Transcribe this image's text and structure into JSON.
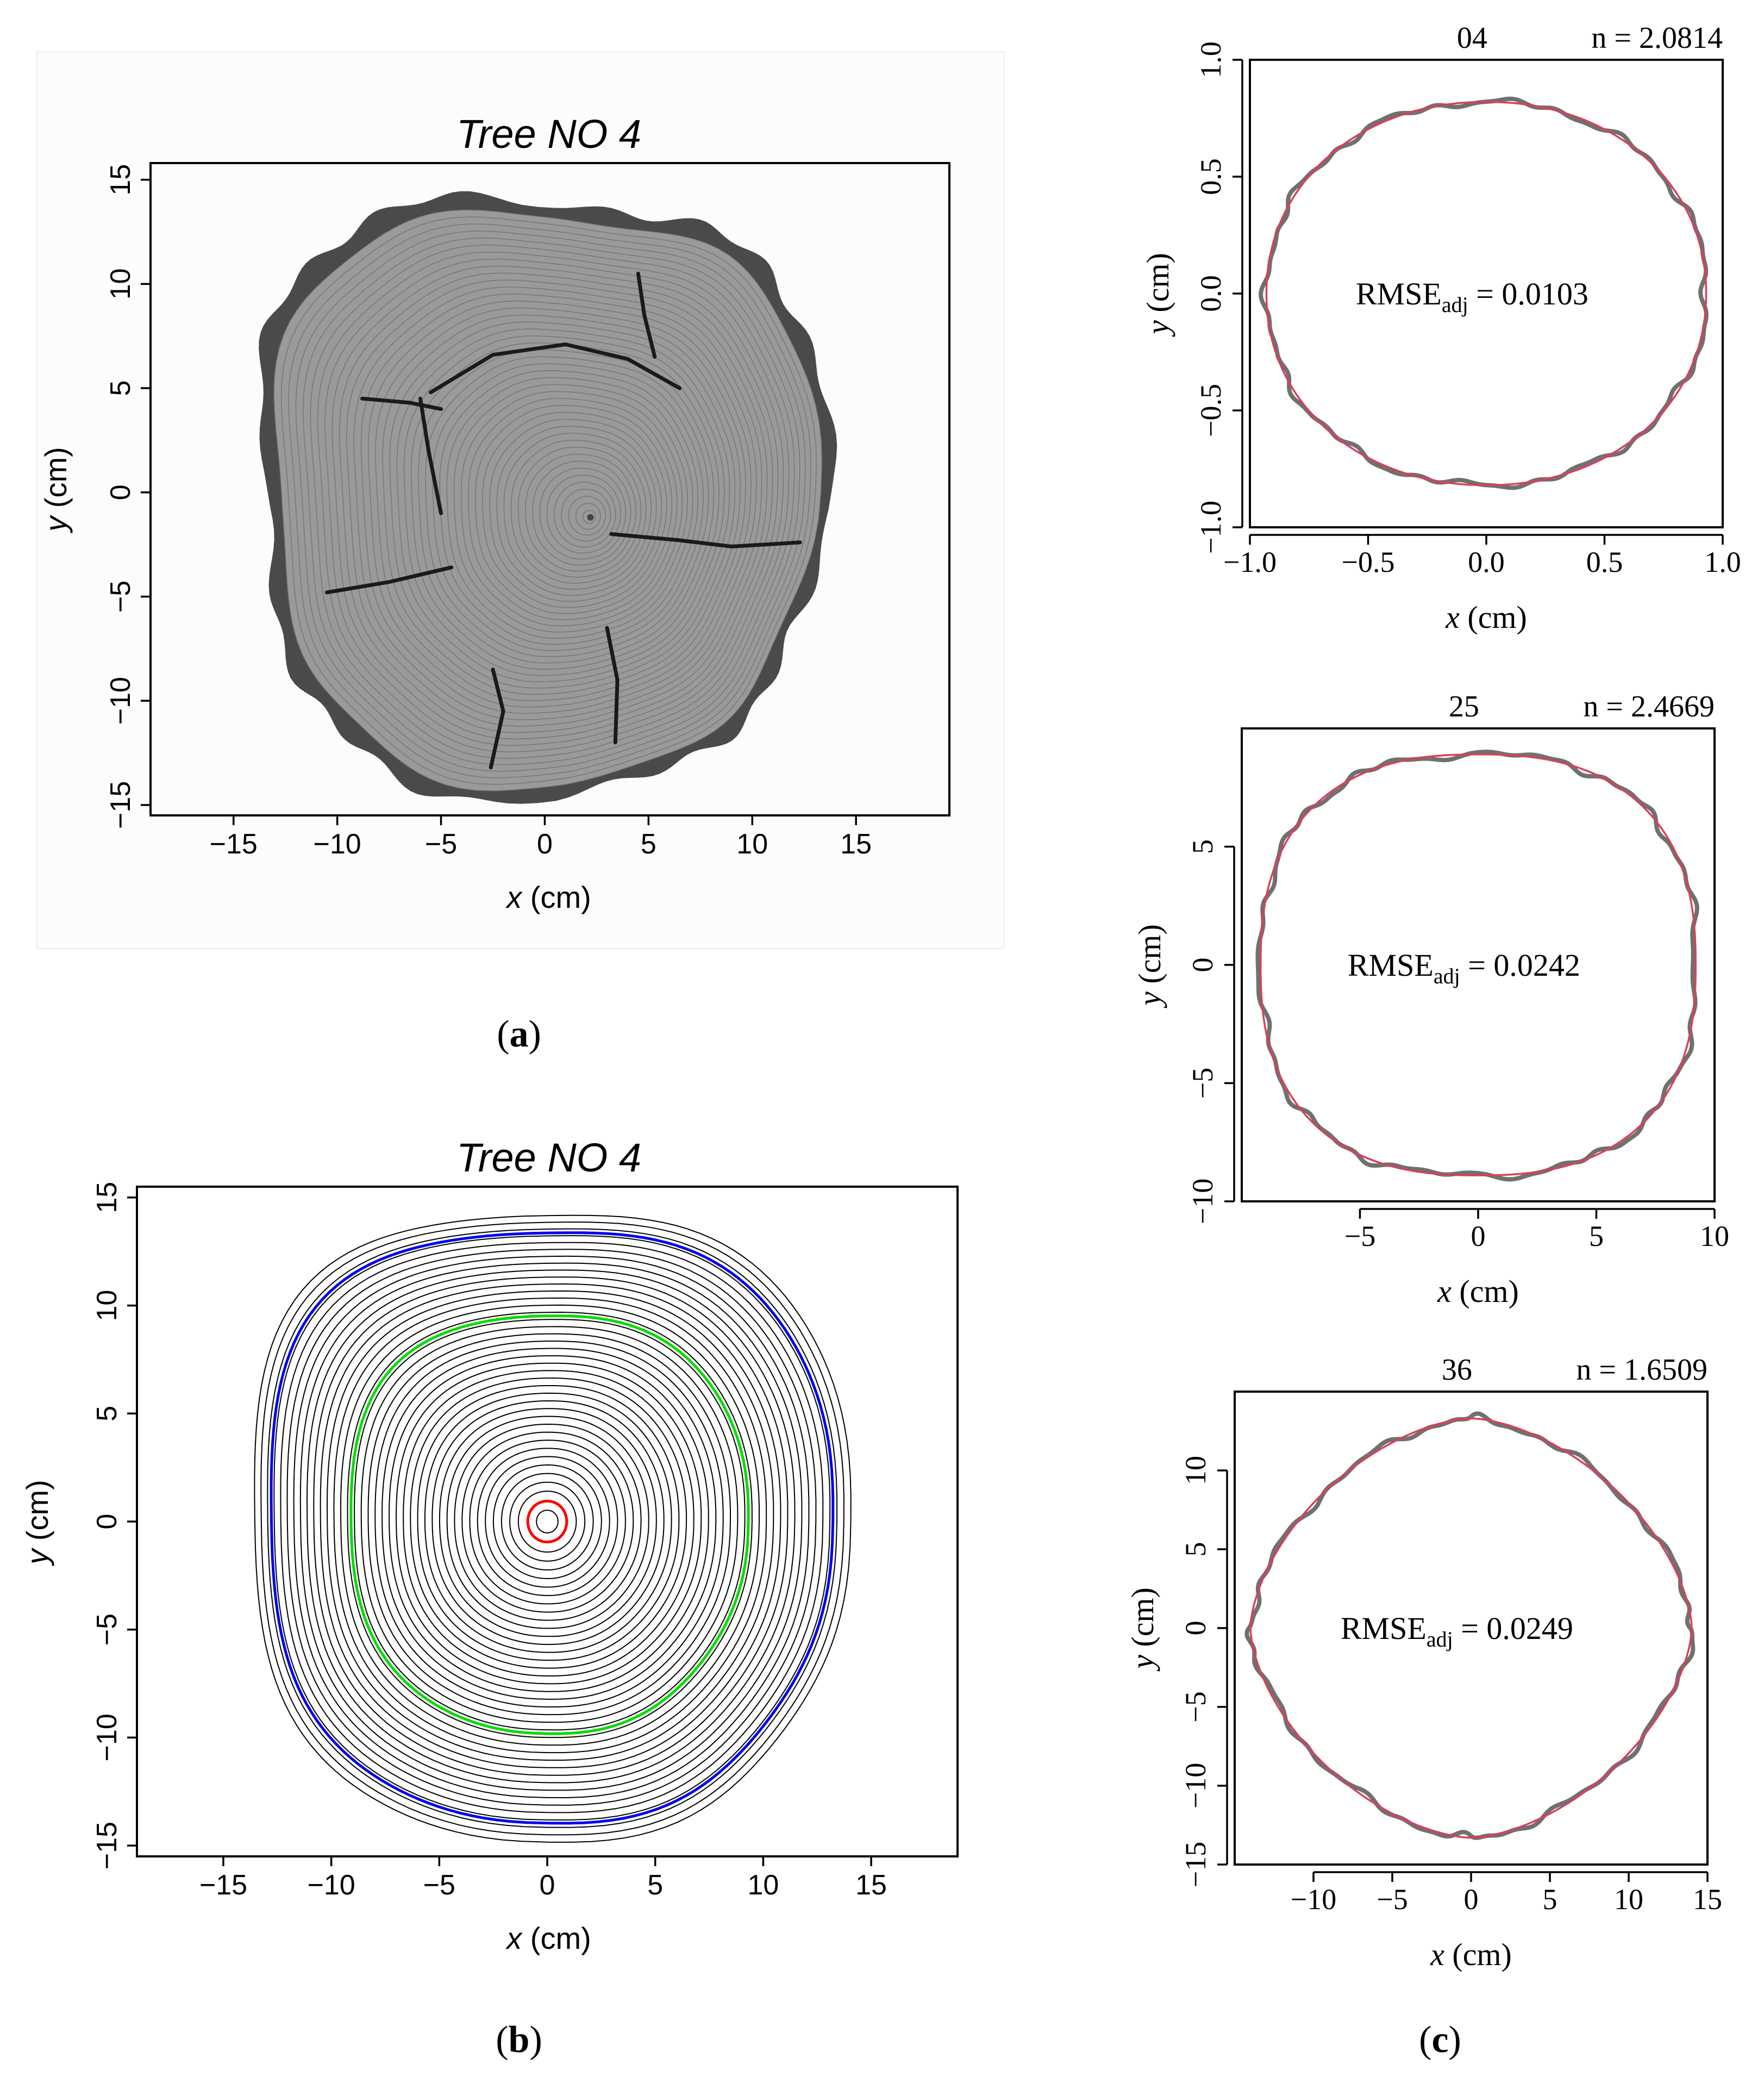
{
  "figure": {
    "panel_labels": {
      "a": "a",
      "b": "b",
      "c": "c"
    },
    "axis_labels": {
      "x_var": "x",
      "y_var": "y",
      "unit": " (cm)"
    },
    "label_parens": {
      "open": "(",
      "close": ")"
    }
  },
  "colors": {
    "ring": "#000000",
    "highlight_red": "#ff0000",
    "highlight_green": "#00dd00",
    "highlight_blue": "#0000ee",
    "observed": "#707070",
    "fit": "#d9405a",
    "wood": "#9a9a9a",
    "bark": "#4a4a4a"
  },
  "chart_data": [
    {
      "id": "a",
      "type": "image",
      "title": "Tree NO 4",
      "xlabel": "x (cm)",
      "ylabel": "y (cm)",
      "xlim": [
        -19,
        19.5
      ],
      "ylim": [
        -15.5,
        15.8
      ],
      "xticks": [
        -15,
        -10,
        -5,
        0,
        5,
        10,
        15
      ],
      "yticks": [
        -15,
        -10,
        -5,
        0,
        5,
        10,
        15
      ],
      "pith": [
        2.2,
        -1.2
      ]
    },
    {
      "id": "b",
      "type": "line",
      "title": "Tree NO 4",
      "xlabel": "x (cm)",
      "ylabel": "y (cm)",
      "xlim": [
        -19,
        19
      ],
      "ylim": [
        -15.5,
        15.5
      ],
      "xticks": [
        -15,
        -10,
        -5,
        0,
        5,
        10,
        15
      ],
      "yticks": [
        -15,
        -10,
        -5,
        0,
        5,
        10,
        15
      ],
      "ring_count": 40,
      "outer_ring": {
        "rx": 13.8,
        "ry": 14.5,
        "squareness": 2.5
      },
      "highlighted_rings": [
        {
          "name": "04",
          "radius": 0.9,
          "color": "#ff0000"
        },
        {
          "name": "25",
          "radius": 9.2,
          "color": "#00dd00"
        },
        {
          "name": "36",
          "radius": 13.0,
          "color": "#0000ee"
        }
      ]
    },
    {
      "id": "c1",
      "type": "line",
      "title": "04",
      "n_label": "n = 2.0814",
      "n": 2.0814,
      "rmse": "0.0103",
      "rmse_prefix": "RMSE",
      "rmse_sub": "adj",
      "rmse_eq": " = ",
      "xlabel": "x (cm)",
      "ylabel": "y (cm)",
      "xlim": [
        -1.0,
        1.0
      ],
      "ylim": [
        -1.0,
        1.0
      ],
      "xticks": [
        -1.0,
        -0.5,
        0.0,
        0.5,
        1.0
      ],
      "xtick_labels": [
        "−1.0",
        "−0.5",
        "0.0",
        "0.5",
        "1.0"
      ],
      "yticks": [
        -1.0,
        -0.5,
        0.0,
        0.5,
        1.0
      ],
      "ytick_labels": [
        "−1.0",
        "−0.5",
        "0.0",
        "0.5",
        "1.0"
      ],
      "fit": {
        "a": 0.93,
        "b": 0.82
      },
      "series": [
        {
          "name": "observed",
          "color": "#707070"
        },
        {
          "name": "fitted",
          "color": "#d9405a"
        }
      ]
    },
    {
      "id": "c2",
      "type": "line",
      "title": "25",
      "n_label": "n = 2.4669",
      "n": 2.4669,
      "rmse": "0.0242",
      "rmse_prefix": "RMSE",
      "rmse_sub": "adj",
      "rmse_eq": " = ",
      "xlabel": "x (cm)",
      "ylabel": "y (cm)",
      "xlim": [
        -10,
        10
      ],
      "ylim": [
        -10,
        10
      ],
      "xticks": [
        -5,
        0,
        5,
        10
      ],
      "xtick_labels": [
        "−5",
        "0",
        "5",
        "10"
      ],
      "yticks": [
        -10,
        -5,
        0,
        5
      ],
      "ytick_labels": [
        "−10",
        "−5",
        "0",
        "5"
      ],
      "fit": {
        "a": 9.2,
        "b": 8.9
      },
      "series": [
        {
          "name": "observed",
          "color": "#707070"
        },
        {
          "name": "fitted",
          "color": "#d9405a"
        }
      ]
    },
    {
      "id": "c3",
      "type": "line",
      "title": "36",
      "n_label": "n = 1.6509",
      "n": 1.6509,
      "rmse": "0.0249",
      "rmse_prefix": "RMSE",
      "rmse_sub": "adj",
      "rmse_eq": " = ",
      "xlabel": "x (cm)",
      "ylabel": "y (cm)",
      "xlim": [
        -15,
        15
      ],
      "ylim": [
        -15,
        15
      ],
      "xticks": [
        -10,
        -5,
        0,
        5,
        10,
        15
      ],
      "xtick_labels": [
        "−10",
        "−5",
        "0",
        "5",
        "10",
        "15"
      ],
      "yticks": [
        -15,
        -10,
        -5,
        0,
        5,
        10
      ],
      "ytick_labels": [
        "−15",
        "−10",
        "−5",
        "0",
        "5",
        "10"
      ],
      "fit": {
        "a": 14.0,
        "b": 13.3
      },
      "series": [
        {
          "name": "observed",
          "color": "#707070"
        },
        {
          "name": "fitted",
          "color": "#d9405a"
        }
      ]
    }
  ]
}
